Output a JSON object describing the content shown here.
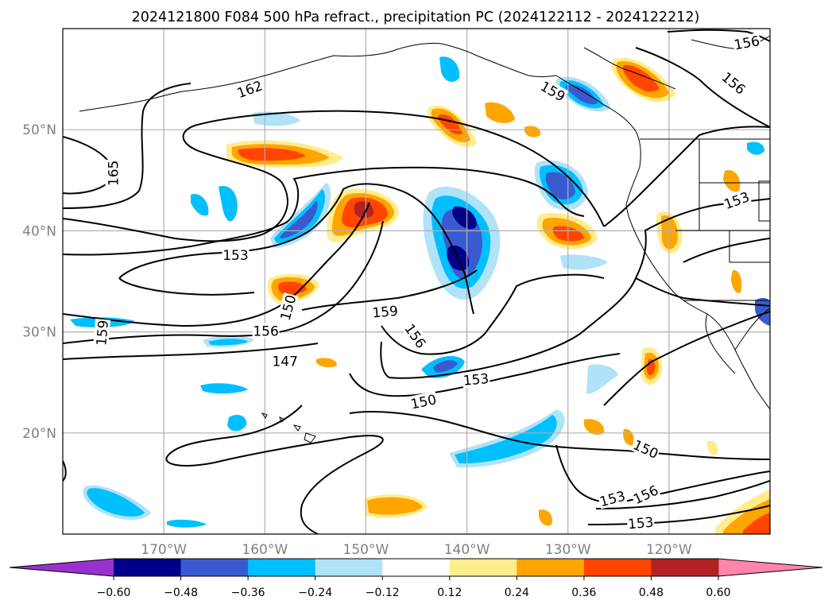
{
  "title": "2024121800 F084 500 hPa refract., precipitation PC (2024122112 - 2024122212)",
  "map": {
    "lon_range": [
      -180,
      -110
    ],
    "lat_range": [
      10,
      60
    ],
    "lon_ticks": [
      {
        "value": -170,
        "label": "170°W"
      },
      {
        "value": -160,
        "label": "160°W"
      },
      {
        "value": -150,
        "label": "150°W"
      },
      {
        "value": -140,
        "label": "140°W"
      },
      {
        "value": -130,
        "label": "130°W"
      },
      {
        "value": -120,
        "label": "120°W"
      }
    ],
    "lat_ticks": [
      {
        "value": 20,
        "label": "20°N"
      },
      {
        "value": 30,
        "label": "30°N"
      },
      {
        "value": 40,
        "label": "40°N"
      },
      {
        "value": 50,
        "label": "50°N"
      }
    ],
    "tick_label_color": "#808080",
    "grid": true,
    "grid_color": "#b0b0b0",
    "contour_color": "#000000",
    "contour_labels": [
      {
        "text": "162",
        "lon": -161.5,
        "lat": 54.0,
        "rot": -20
      },
      {
        "text": "165",
        "lon": -175.0,
        "lat": 45.7,
        "rot": -90
      },
      {
        "text": "153",
        "lon": -162.9,
        "lat": 37.6,
        "rot": 0
      },
      {
        "text": "150",
        "lon": -157.7,
        "lat": 32.4,
        "rot": -75
      },
      {
        "text": "159",
        "lon": -176.1,
        "lat": 29.9,
        "rot": -85
      },
      {
        "text": "156",
        "lon": -159.9,
        "lat": 30.1,
        "rot": 0
      },
      {
        "text": "147",
        "lon": -158.0,
        "lat": 27.1,
        "rot": 0
      },
      {
        "text": "159",
        "lon": -148.1,
        "lat": 32.0,
        "rot": -5
      },
      {
        "text": "156",
        "lon": -145.1,
        "lat": 29.6,
        "rot": 55
      },
      {
        "text": "153",
        "lon": -139.1,
        "lat": 25.3,
        "rot": -5
      },
      {
        "text": "150",
        "lon": -144.3,
        "lat": 23.1,
        "rot": -12
      },
      {
        "text": "150",
        "lon": -122.3,
        "lat": 18.4,
        "rot": 25
      },
      {
        "text": "153",
        "lon": -125.6,
        "lat": 13.5,
        "rot": -15
      },
      {
        "text": "156",
        "lon": -122.3,
        "lat": 13.9,
        "rot": -25
      },
      {
        "text": "153",
        "lon": -122.8,
        "lat": 11.1,
        "rot": -5
      },
      {
        "text": "156",
        "lon": -112.3,
        "lat": 58.6,
        "rot": -10
      },
      {
        "text": "156",
        "lon": -113.6,
        "lat": 54.6,
        "rot": 40
      },
      {
        "text": "153",
        "lon": -113.3,
        "lat": 43.0,
        "rot": -20
      },
      {
        "text": "159",
        "lon": -131.5,
        "lat": 53.8,
        "rot": 30
      }
    ]
  },
  "colorbar": {
    "ticks": [
      "−0.60",
      "−0.48",
      "−0.36",
      "−0.24",
      "−0.12",
      "0.12",
      "0.24",
      "0.36",
      "0.48",
      "0.60"
    ],
    "colors": [
      "#9932cc",
      "#00008b",
      "#3a5bd0",
      "#00bfff",
      "#b0e2f8",
      "#ffffff",
      "#ffec8b",
      "#ffa500",
      "#ff4500",
      "#b22222",
      "#ff85aa"
    ],
    "extend": "both"
  }
}
